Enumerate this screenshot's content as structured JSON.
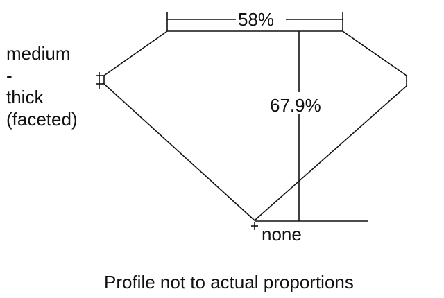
{
  "table_label": "58%",
  "depth_label": "67.9%",
  "girdle_label": [
    "medium",
    "-",
    "thick",
    "(faceted)"
  ],
  "culet_label": "none",
  "caption": "Profile not to actual proportions"
}
